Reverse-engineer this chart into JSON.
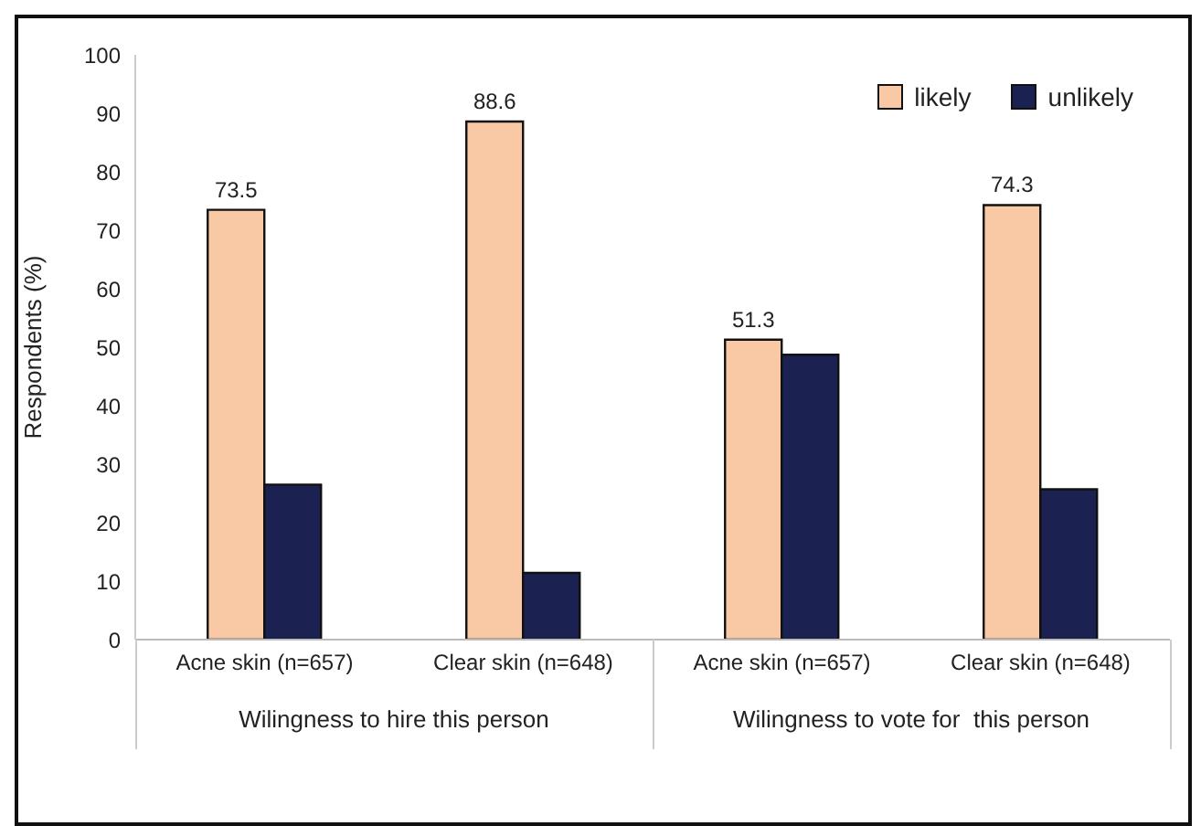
{
  "chart_data": {
    "type": "bar",
    "ylabel": "Respondents (%)",
    "categories": [
      "Acne skin (n=657)",
      "Clear skin (n=648)",
      "Acne skin (n=657)",
      "Clear skin (n=648)"
    ],
    "series": [
      {
        "name": "likely",
        "color": "#f9c9a5",
        "values": [
          73.5,
          88.6,
          51.3,
          74.3
        ],
        "value_labels": [
          "73.5",
          "88.6",
          "51.3",
          "74.3"
        ]
      },
      {
        "name": "unlikely",
        "color": "#1b2150",
        "values": [
          26.5,
          11.4,
          48.7,
          25.7
        ]
      }
    ],
    "ylim": [
      0,
      100
    ],
    "yticks": [
      0,
      10,
      20,
      30,
      40,
      50,
      60,
      70,
      80,
      90,
      100
    ],
    "legend": "top right",
    "annotations": [
      "Wilingness to hire this person",
      "Wilingness to vote for  this person"
    ]
  }
}
